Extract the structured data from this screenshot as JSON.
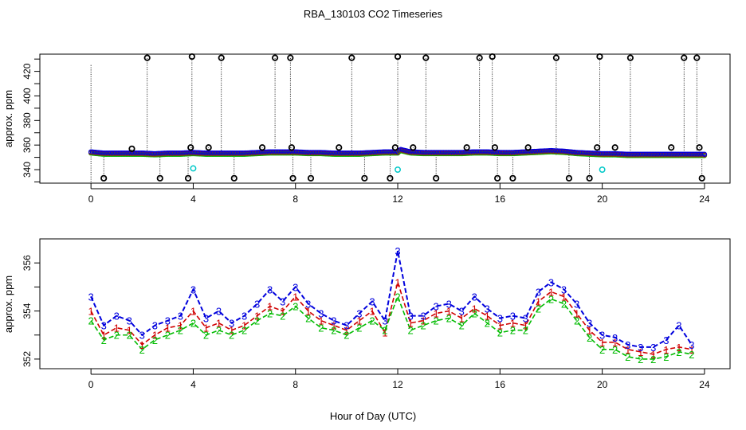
{
  "title": "RBA_130103  CO2 Timeseries",
  "xlabel": "Hour of Day (UTC)",
  "colors": {
    "series1": "#d00000",
    "series2": "#00bb00",
    "series3": "#0000dd",
    "outlier": "#000000",
    "flag": "#00c8c8",
    "frame": "#000000"
  },
  "chart_data": [
    {
      "type": "scatter",
      "panel": "top",
      "title": "RBA_130103  CO2 Timeseries",
      "xlabel": "",
      "ylabel": "approx. ppm",
      "xlim": [
        -2,
        25
      ],
      "ylim": [
        329,
        434
      ],
      "x_ticks": [
        "0",
        "4",
        "8",
        "12",
        "16",
        "20",
        "24"
      ],
      "y_ticks": [
        "340",
        "360",
        "380",
        "400",
        "420"
      ],
      "baseline": {
        "x": [
          0,
          0.5,
          1,
          1.5,
          2,
          2.5,
          3,
          3.5,
          4,
          4.5,
          5,
          5.5,
          6,
          6.5,
          7,
          7.5,
          8,
          8.5,
          9,
          9.5,
          10,
          10.5,
          11,
          11.5,
          12,
          12.1,
          12.5,
          13,
          13.5,
          14,
          14.5,
          15,
          15.5,
          16,
          16.5,
          17,
          17.5,
          18,
          18.5,
          19,
          19.5,
          20,
          20.5,
          21,
          21.5,
          22,
          22.5,
          23,
          23.5,
          24
        ],
        "values": [
          354,
          353,
          353,
          353,
          353,
          352.5,
          353,
          353,
          353.5,
          353,
          353,
          353,
          353,
          353.5,
          354,
          354,
          354,
          353.5,
          353.5,
          353,
          353,
          353,
          353.5,
          354,
          354,
          356,
          354,
          353.5,
          353.5,
          353.5,
          353.5,
          354,
          354,
          353.5,
          353.5,
          354,
          354.5,
          355,
          354.5,
          353.5,
          353,
          352.5,
          352.5,
          352,
          352,
          352,
          352,
          352,
          352,
          352
        ]
      },
      "outliers": {
        "x": [
          0.5,
          1.6,
          2.2,
          2.7,
          3.8,
          3.9,
          3.95,
          4.6,
          5.1,
          5.6,
          6.7,
          7.2,
          7.8,
          7.85,
          7.9,
          8.6,
          9.7,
          10.2,
          10.7,
          11.7,
          11.9,
          12.0,
          12.6,
          13.1,
          13.5,
          14.7,
          15.2,
          15.7,
          15.8,
          15.9,
          16.5,
          17.1,
          18.2,
          18.7,
          19.5,
          19.8,
          19.9,
          20.5,
          21.1,
          22.7,
          23.2,
          23.7,
          23.8,
          23.9
        ],
        "values": [
          333,
          357,
          431,
          333,
          333,
          358,
          432,
          358,
          431,
          333,
          358,
          431,
          431,
          358,
          333,
          333,
          358,
          431,
          333,
          333,
          358,
          432,
          358,
          431,
          333,
          358,
          431,
          432,
          358,
          333,
          333,
          358,
          431,
          333,
          333,
          358,
          432,
          358,
          431,
          358,
          431,
          431,
          358,
          333
        ]
      },
      "flagged": {
        "x": [
          4.0,
          12.0,
          20.0
        ],
        "values": [
          341,
          340,
          340
        ]
      }
    },
    {
      "type": "line",
      "panel": "bottom",
      "xlabel": "Hour of Day (UTC)",
      "ylabel": "approx. ppm",
      "xlim": [
        -2,
        25
      ],
      "ylim": [
        351.6,
        357
      ],
      "x_ticks": [
        "0",
        "4",
        "8",
        "12",
        "16",
        "20",
        "24"
      ],
      "y_ticks": [
        "352",
        "354",
        "356"
      ],
      "x": [
        0,
        0.5,
        1,
        1.5,
        2,
        2.5,
        3,
        3.5,
        4,
        4.5,
        5,
        5.5,
        6,
        6.5,
        7,
        7.5,
        8,
        8.5,
        9,
        9.5,
        10,
        10.5,
        11,
        11.5,
        12,
        12.5,
        13,
        13.5,
        14,
        14.5,
        15,
        15.5,
        16,
        16.5,
        17,
        17.5,
        18,
        18.5,
        19,
        19.5,
        20,
        20.5,
        21,
        21.5,
        22,
        22.5,
        23,
        23.5
      ],
      "series": [
        {
          "name": "1",
          "label": "1",
          "values": [
            354.0,
            353.0,
            353.3,
            353.2,
            352.6,
            353.0,
            353.3,
            353.4,
            354.0,
            353.3,
            353.5,
            353.2,
            353.4,
            353.8,
            354.2,
            354.0,
            354.6,
            354.0,
            353.6,
            353.4,
            353.2,
            353.6,
            354.0,
            353.1,
            355.2,
            353.5,
            353.6,
            353.9,
            354.0,
            353.7,
            354.1,
            353.8,
            353.4,
            353.5,
            353.4,
            354.4,
            354.8,
            354.6,
            353.9,
            353.2,
            352.7,
            352.7,
            352.4,
            352.3,
            352.2,
            352.4,
            352.5,
            352.4
          ]
        },
        {
          "name": "2",
          "label": "2",
          "values": [
            353.6,
            352.8,
            353.0,
            353.0,
            352.4,
            352.8,
            353.0,
            353.2,
            353.5,
            353.0,
            353.2,
            353.0,
            353.2,
            353.6,
            353.9,
            353.8,
            354.2,
            353.7,
            353.3,
            353.2,
            353.0,
            353.3,
            353.6,
            353.2,
            354.6,
            353.2,
            353.4,
            353.6,
            353.7,
            353.4,
            353.9,
            353.5,
            353.1,
            353.2,
            353.2,
            354.1,
            354.5,
            354.3,
            353.6,
            352.9,
            352.4,
            352.4,
            352.1,
            352.0,
            352.0,
            352.1,
            352.3,
            352.2
          ]
        },
        {
          "name": "3",
          "label": "3",
          "values": [
            354.6,
            353.4,
            353.8,
            353.6,
            353.0,
            353.4,
            353.6,
            353.8,
            354.9,
            353.7,
            354.0,
            353.5,
            353.8,
            354.3,
            354.9,
            354.4,
            355.0,
            354.3,
            353.9,
            353.6,
            353.4,
            353.9,
            354.4,
            353.6,
            356.5,
            353.8,
            353.8,
            354.2,
            354.3,
            354.0,
            354.6,
            354.1,
            353.7,
            353.8,
            353.7,
            354.8,
            355.2,
            354.9,
            354.3,
            353.5,
            353.0,
            352.9,
            352.6,
            352.5,
            352.5,
            352.8,
            353.4,
            352.6
          ]
        }
      ]
    }
  ]
}
